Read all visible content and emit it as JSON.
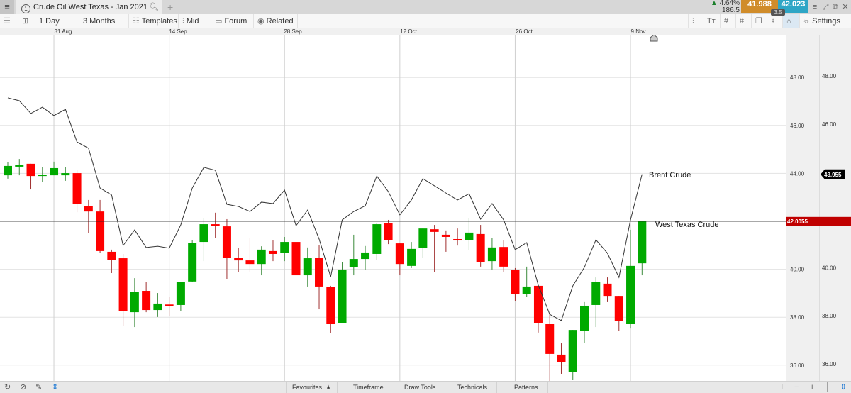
{
  "window": {
    "menu_icon": "hamburger-icon",
    "tab_number": "1",
    "tab_title": "Crude Oil West Texas - Jan 2021",
    "add_tab": "+",
    "change_pct": "4.64%",
    "change_points": "186.5",
    "bid": "41.988",
    "ask": "42.023",
    "spread": "3.5",
    "colors": {
      "bid": "#d08c2a",
      "ask": "#2ea6c6",
      "up": "#1a7f2a"
    }
  },
  "toolbar": {
    "interval": "1 Day",
    "range": "3 Months",
    "templates": "Templates",
    "price_type": "Mid",
    "forum": "Forum",
    "related": "Related",
    "settings": "Settings"
  },
  "bottombar": {
    "favourites": "Favourites",
    "timeframe": "Timeframe",
    "draw_tools": "Draw Tools",
    "technicals": "Technicals",
    "patterns": "Patterns"
  },
  "chart_data": {
    "type": "candlestick",
    "x_ticks": [
      "31 Aug",
      "14 Sep",
      "28 Sep",
      "12 Oct",
      "26 Oct",
      "9 Nov"
    ],
    "y_ticks": [
      "48.00",
      "46.00",
      "44.00",
      "40.00",
      "38.00",
      "36.00"
    ],
    "y_ticks_secondary": [
      "48.00",
      "46.00",
      "40.00",
      "38.00",
      "36.00"
    ],
    "ylim": [
      35.2,
      49.9
    ],
    "grid": true,
    "colors": {
      "up": "#00aa00",
      "down": "#ff0000",
      "line": "#333333",
      "price_label": "#c00000"
    },
    "series": [
      {
        "name": "West Texas Crude",
        "type": "candlestick",
        "last_price_label": "42.0055",
        "last_price": 42.0055,
        "ohlc": [
          [
            43.92,
            44.46,
            43.78,
            44.31
          ],
          [
            44.28,
            44.6,
            43.92,
            44.34
          ],
          [
            44.4,
            44.4,
            43.33,
            43.89
          ],
          [
            43.89,
            44.25,
            43.63,
            43.95
          ],
          [
            43.92,
            44.49,
            43.92,
            44.22
          ],
          [
            43.92,
            44.25,
            43.69,
            44.01
          ],
          [
            44.01,
            44.13,
            42.38,
            42.71
          ],
          [
            42.65,
            42.89,
            41.5,
            42.41
          ],
          [
            42.41,
            42.89,
            40.67,
            40.76
          ],
          [
            40.73,
            40.82,
            39.84,
            40.4
          ],
          [
            40.46,
            40.64,
            37.65,
            38.27
          ],
          [
            38.21,
            39.63,
            37.59,
            39.07
          ],
          [
            39.1,
            39.46,
            38.21,
            38.3
          ],
          [
            38.3,
            39.01,
            38.01,
            38.57
          ],
          [
            38.53,
            38.86,
            38.04,
            38.51
          ],
          [
            38.51,
            39.46,
            38.27,
            39.46
          ],
          [
            39.49,
            41.23,
            39.46,
            41.11
          ],
          [
            41.14,
            42.12,
            40.34,
            41.88
          ],
          [
            41.88,
            42.36,
            41.29,
            41.82
          ],
          [
            41.79,
            42.09,
            39.6,
            40.49
          ],
          [
            40.49,
            40.88,
            39.87,
            40.37
          ],
          [
            40.37,
            41.32,
            39.9,
            40.22
          ],
          [
            40.22,
            40.96,
            39.75,
            40.82
          ],
          [
            40.76,
            41.2,
            40.34,
            40.64
          ],
          [
            40.67,
            41.35,
            40.34,
            41.14
          ],
          [
            41.14,
            41.23,
            39.1,
            39.75
          ],
          [
            39.75,
            40.91,
            39.28,
            40.46
          ],
          [
            40.49,
            41.02,
            38.33,
            39.28
          ],
          [
            39.25,
            39.31,
            37.33,
            37.71
          ],
          [
            37.74,
            40.31,
            37.74,
            39.99
          ],
          [
            40.08,
            41.44,
            39.75,
            40.43
          ],
          [
            40.43,
            40.97,
            39.96,
            40.7
          ],
          [
            40.64,
            41.94,
            40.4,
            41.88
          ],
          [
            41.94,
            42.06,
            41.05,
            41.23
          ],
          [
            41.08,
            41.08,
            39.75,
            40.22
          ],
          [
            40.14,
            41.14,
            40.05,
            40.85
          ],
          [
            40.88,
            41.7,
            40.49,
            41.7
          ],
          [
            41.67,
            41.85,
            39.87,
            41.56
          ],
          [
            41.44,
            41.62,
            40.73,
            41.35
          ],
          [
            41.26,
            41.7,
            40.99,
            41.24
          ],
          [
            41.23,
            42.15,
            40.79,
            41.53
          ],
          [
            41.47,
            41.85,
            40.11,
            40.31
          ],
          [
            40.34,
            41.29,
            39.99,
            40.91
          ],
          [
            40.93,
            41.2,
            39.9,
            40.11
          ],
          [
            39.96,
            40.05,
            38.66,
            38.98
          ],
          [
            38.98,
            40.11,
            38.86,
            39.28
          ],
          [
            39.31,
            39.31,
            37.36,
            37.74
          ],
          [
            37.71,
            38.12,
            35.31,
            36.47
          ],
          [
            36.44,
            36.91,
            35.64,
            36.14
          ],
          [
            35.7,
            37.47,
            35.4,
            37.47
          ],
          [
            37.44,
            38.63,
            36.94,
            38.48
          ],
          [
            38.51,
            39.66,
            37.59,
            39.46
          ],
          [
            39.4,
            39.66,
            38.63,
            38.89
          ],
          [
            38.89,
            38.89,
            37.44,
            37.83
          ],
          [
            37.71,
            41.65,
            37.53,
            40.14
          ],
          [
            40.25,
            42.03,
            39.75,
            42.0055
          ]
        ]
      },
      {
        "name": "Brent Crude",
        "type": "line",
        "last_price_label": "43.955",
        "values": [
          47.15,
          47.03,
          46.5,
          46.76,
          46.41,
          46.67,
          45.31,
          45.05,
          43.39,
          43.1,
          40.99,
          41.64,
          40.91,
          40.96,
          40.88,
          41.85,
          43.39,
          44.25,
          44.13,
          42.71,
          42.62,
          42.41,
          42.8,
          42.74,
          43.3,
          41.82,
          42.47,
          41.26,
          39.69,
          42.06,
          42.41,
          42.65,
          43.89,
          43.24,
          42.27,
          42.89,
          43.78,
          43.48,
          43.18,
          42.89,
          43.15,
          42.09,
          42.74,
          42.06,
          40.82,
          41.11,
          39.34,
          38.12,
          37.86,
          39.31,
          40.08,
          41.23,
          40.67,
          39.66,
          42.06,
          43.96
        ]
      }
    ]
  }
}
